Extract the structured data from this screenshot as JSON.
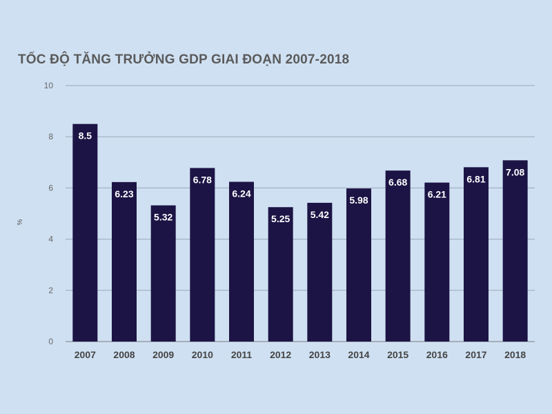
{
  "chart_data": {
    "type": "bar",
    "title": "TỐC ĐỘ TĂNG TRƯỞNG GDP GIAI ĐOẠN 2007-2018",
    "xlabel": "",
    "ylabel": "%",
    "categories": [
      "2007",
      "2008",
      "2009",
      "2010",
      "2011",
      "2012",
      "2013",
      "2014",
      "2015",
      "2016",
      "2017",
      "2018"
    ],
    "values": [
      8.5,
      6.23,
      5.32,
      6.78,
      6.24,
      5.25,
      5.42,
      5.98,
      6.68,
      6.21,
      6.81,
      7.08
    ],
    "data_labels": [
      "8.5",
      "6.23",
      "5.32",
      "6.78",
      "6.24",
      "5.25",
      "5.42",
      "5.98",
      "6.68",
      "6.21",
      "6.81",
      "7.08"
    ],
    "ylim": [
      0,
      10
    ],
    "yticks": [
      "0",
      "2",
      "4",
      "6",
      "8",
      "10"
    ],
    "grid": true,
    "bar_color": "#1c1445"
  }
}
